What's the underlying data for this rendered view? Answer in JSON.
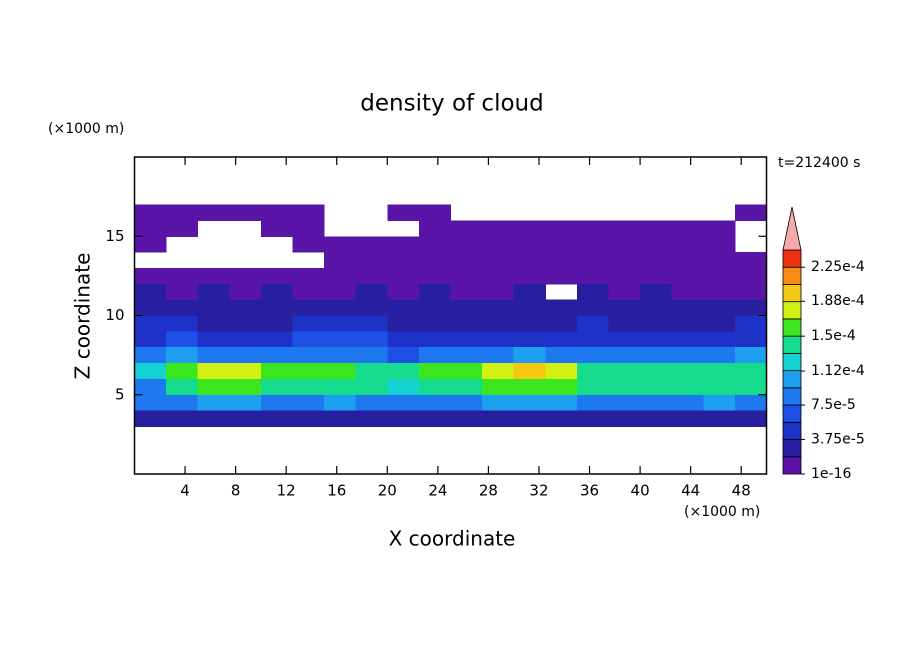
{
  "chart_data": {
    "type": "contour",
    "title": "density of cloud",
    "xlabel": "X coordinate",
    "ylabel": "Z coordinate",
    "x_unit": "(×1000 m)",
    "y_unit": "(×1000 m)",
    "time_label": "t=212400 s",
    "xlim": [
      0,
      50
    ],
    "ylim": [
      0,
      20
    ],
    "xticks": [
      4,
      8,
      12,
      16,
      20,
      24,
      28,
      32,
      36,
      40,
      44,
      48
    ],
    "yticks": [
      5,
      10,
      15
    ],
    "field": {
      "x": [
        1.25,
        3.75,
        6.25,
        8.75,
        11.25,
        13.75,
        16.25,
        18.75,
        21.25,
        23.75,
        26.25,
        28.75,
        31.25,
        33.75,
        36.25,
        38.75,
        41.25,
        43.75,
        46.25,
        48.75
      ],
      "z": [
        16.5,
        15.5,
        14.5,
        13.5,
        12.5,
        11.5,
        10.5,
        9.5,
        8.5,
        7.5,
        6.5,
        5.5,
        4.5,
        3.5
      ],
      "values": [
        [
          5e-06,
          5e-06,
          5e-06,
          5e-06,
          5e-06,
          5e-06,
          null,
          null,
          5e-06,
          5e-06,
          null,
          null,
          null,
          null,
          null,
          null,
          null,
          null,
          null,
          5e-06
        ],
        [
          5e-06,
          5e-06,
          null,
          null,
          5e-06,
          5e-06,
          null,
          null,
          null,
          5e-06,
          5e-06,
          5e-06,
          5e-06,
          5e-06,
          5e-06,
          5e-06,
          5e-06,
          5e-06,
          5e-06,
          null
        ],
        [
          5e-06,
          null,
          null,
          null,
          null,
          5e-06,
          5e-06,
          5e-06,
          5e-06,
          5e-06,
          5e-06,
          5e-06,
          5e-06,
          5e-06,
          5e-06,
          5e-06,
          5e-06,
          5e-06,
          5e-06,
          null
        ],
        [
          null,
          null,
          null,
          null,
          null,
          null,
          5e-06,
          5e-06,
          5e-06,
          5e-06,
          5e-06,
          5e-06,
          5e-06,
          5e-06,
          5e-06,
          5e-06,
          5e-06,
          5e-06,
          5e-06,
          5e-06
        ],
        [
          1e-05,
          1e-05,
          1e-05,
          1e-05,
          1e-05,
          1e-05,
          1e-05,
          1e-05,
          1e-05,
          1e-05,
          1e-05,
          1e-05,
          1e-05,
          1e-05,
          1e-05,
          1e-05,
          1e-05,
          1e-05,
          1e-05,
          1e-05
        ],
        [
          2e-05,
          1e-05,
          2e-05,
          1e-05,
          2e-05,
          1e-05,
          1e-05,
          2e-05,
          1e-05,
          2e-05,
          1e-05,
          1e-05,
          2e-05,
          null,
          2e-05,
          1e-05,
          2e-05,
          1e-05,
          1e-05,
          1e-05
        ],
        [
          3e-05,
          3e-05,
          2.5e-05,
          2e-05,
          3e-05,
          3e-05,
          3e-05,
          3e-05,
          2.5e-05,
          2e-05,
          2.5e-05,
          3e-05,
          3e-05,
          2.5e-05,
          2.5e-05,
          3e-05,
          2e-05,
          2e-05,
          3e-05,
          2.5e-05
        ],
        [
          4.5e-05,
          4e-05,
          3e-05,
          3e-05,
          3.5e-05,
          4.5e-05,
          5e-05,
          4.5e-05,
          3e-05,
          3e-05,
          3e-05,
          3.5e-05,
          3.5e-05,
          3e-05,
          4e-05,
          3.5e-05,
          3e-05,
          3.5e-05,
          3e-05,
          4e-05
        ],
        [
          5.5e-05,
          6e-05,
          4.5e-05,
          4e-05,
          4.5e-05,
          6e-05,
          6.5e-05,
          6e-05,
          4.5e-05,
          4e-05,
          4.5e-05,
          4.5e-05,
          5e-05,
          4.5e-05,
          5.5e-05,
          5e-05,
          4.5e-05,
          5e-05,
          4.5e-05,
          5.5e-05
        ],
        [
          9e-05,
          0.0001,
          9e-05,
          8.5e-05,
          8.5e-05,
          9e-05,
          8e-05,
          8e-05,
          7e-05,
          8e-05,
          8.5e-05,
          9e-05,
          9.5e-05,
          9e-05,
          8.5e-05,
          9e-05,
          8.5e-05,
          9e-05,
          8.5e-05,
          9.5e-05
        ],
        [
          0.00012,
          0.000155,
          0.00017,
          0.000175,
          0.00016,
          0.000155,
          0.00016,
          0.000145,
          0.000135,
          0.000155,
          0.00016,
          0.00017,
          0.0002,
          0.000185,
          0.00015,
          0.000145,
          0.00015,
          0.000145,
          0.00015,
          0.00014
        ],
        [
          8e-05,
          0.000145,
          0.00016,
          0.00016,
          0.00015,
          0.00015,
          0.000145,
          0.00014,
          0.00013,
          0.000145,
          0.00015,
          0.000155,
          0.000165,
          0.000155,
          0.000145,
          0.00014,
          0.000145,
          0.00014,
          0.000145,
          0.000135
        ],
        [
          8e-05,
          9e-05,
          0.0001,
          9.5e-05,
          9e-05,
          9e-05,
          9.5e-05,
          9e-05,
          8.5e-05,
          9e-05,
          9e-05,
          9.5e-05,
          0.0001,
          9.5e-05,
          9e-05,
          8.5e-05,
          9e-05,
          9e-05,
          9.5e-05,
          9e-05
        ],
        [
          2.5e-05,
          2.5e-05,
          2.5e-05,
          2.5e-05,
          2.5e-05,
          2.5e-05,
          2.5e-05,
          2.5e-05,
          2.5e-05,
          2.5e-05,
          2.5e-05,
          2.5e-05,
          2.5e-05,
          2.5e-05,
          2.5e-05,
          2.5e-05,
          2.5e-05,
          2.5e-05,
          2.5e-05,
          2.5e-05
        ]
      ]
    },
    "colorbar": {
      "clim": [
        1e-16,
        0.00024375
      ],
      "ticks": [
        1e-16,
        {
          "value": 3.75e-05,
          "label": "3.75e-5"
        },
        {
          "value": 7.5e-05,
          "label": "7.5e-5"
        },
        {
          "value": 0.000112,
          "label": "1.12e-4"
        },
        {
          "value": 0.00015,
          "label": "1.5e-4"
        },
        {
          "value": 0.000188,
          "label": "1.88e-4"
        },
        {
          "value": 0.000225,
          "label": "2.25e-4"
        }
      ],
      "colors": [
        "#5a14a8",
        "#281ea0",
        "#1e32c8",
        "#1e50e6",
        "#1e78f0",
        "#1ea0f0",
        "#14d2d2",
        "#14dc8c",
        "#3ce61e",
        "#d2f014",
        "#f5c814",
        "#f58c14",
        "#f03214"
      ],
      "extend_color": "#f5aaaa"
    }
  }
}
